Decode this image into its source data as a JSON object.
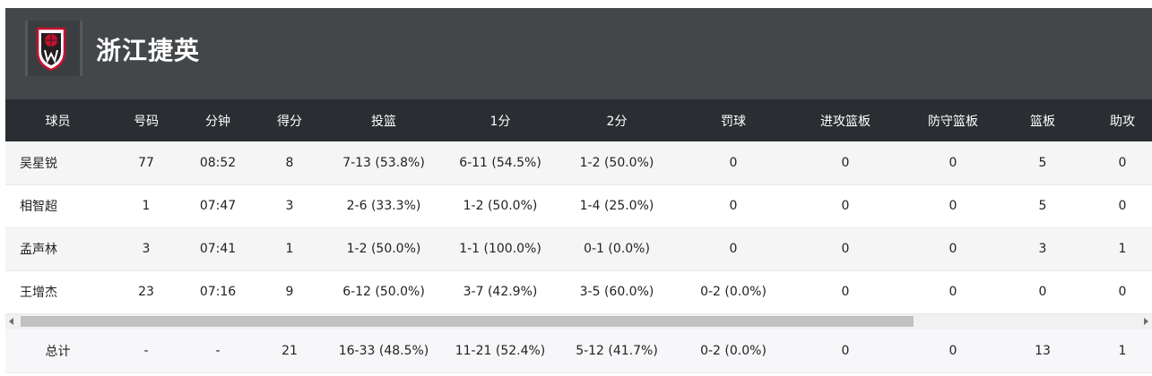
{
  "team": {
    "name": "浙江捷英",
    "logo_icon": "basketball-shield-logo"
  },
  "columns": [
    "球员",
    "号码",
    "分钟",
    "得分",
    "投篮",
    "1分",
    "2分",
    "罚球",
    "进攻篮板",
    "防守篮板",
    "篮板",
    "助攻"
  ],
  "rows": [
    [
      "吴星锐",
      "77",
      "08:52",
      "8",
      "7-13 (53.8%)",
      "6-11 (54.5%)",
      "1-2 (50.0%)",
      "0",
      "0",
      "0",
      "5",
      "0"
    ],
    [
      "相智超",
      "1",
      "07:47",
      "3",
      "2-6 (33.3%)",
      "1-2 (50.0%)",
      "1-4 (25.0%)",
      "0",
      "0",
      "0",
      "5",
      "0"
    ],
    [
      "孟声林",
      "3",
      "07:41",
      "1",
      "1-2 (50.0%)",
      "1-1 (100.0%)",
      "0-1 (0.0%)",
      "0",
      "0",
      "0",
      "3",
      "1"
    ],
    [
      "王增杰",
      "23",
      "07:16",
      "9",
      "6-12 (50.0%)",
      "3-7 (42.9%)",
      "3-5 (60.0%)",
      "0-2 (0.0%)",
      "0",
      "0",
      "0",
      "0"
    ]
  ],
  "totals": [
    "总计",
    "-",
    "-",
    "21",
    "16-33 (48.5%)",
    "11-21 (52.4%)",
    "5-12 (41.7%)",
    "0-2 (0.0%)",
    "0",
    "0",
    "13",
    "1"
  ],
  "colors": {
    "header_bg": "#44474a",
    "table_head_bg": "#2a2d31"
  }
}
